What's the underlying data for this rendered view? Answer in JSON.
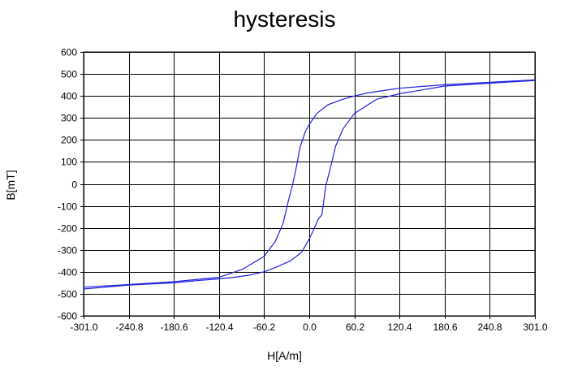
{
  "chart_data": {
    "type": "line",
    "title": "hysteresis",
    "xlabel": "H[A/m]",
    "ylabel": "B[mT]",
    "xlim": [
      -301.0,
      301.0
    ],
    "ylim": [
      -600,
      600
    ],
    "x_ticks": [
      "-301.0",
      "-240.8",
      "-180.6",
      "-120.4",
      "-60.2",
      "0.0",
      "60.2",
      "120.4",
      "180.6",
      "240.8",
      "301.0"
    ],
    "y_ticks": [
      "600",
      "500",
      "400",
      "300",
      "200",
      "100",
      "0",
      "-100",
      "-200",
      "-300",
      "-400",
      "-500",
      "-600"
    ],
    "grid": true,
    "line_color": "#2020e0",
    "series": [
      {
        "x": [
          -301,
          -240.8,
          -180.6,
          -120.4,
          -90,
          -60.2,
          -45,
          -35,
          -28,
          -22,
          -17,
          -12,
          -5,
          0,
          10,
          25,
          45,
          60.2,
          80,
          100,
          120.4,
          150,
          180.6,
          240.8,
          301
        ],
        "values": [
          -470,
          -458,
          -445,
          -425,
          -390,
          -330,
          -260,
          -180,
          -80,
          0,
          80,
          170,
          240,
          270,
          320,
          360,
          385,
          400,
          415,
          425,
          435,
          443,
          451,
          462,
          473
        ]
      },
      {
        "x": [
          301,
          240.8,
          180.6,
          120.4,
          90,
          60.2,
          45,
          35,
          28,
          22,
          17,
          12,
          5,
          0,
          -10,
          -25,
          -45,
          -60.2,
          -80,
          -100,
          -120.4,
          -150,
          -180.6,
          -240.8,
          -301
        ],
        "values": [
          470,
          458,
          445,
          410,
          385,
          320,
          250,
          170,
          70,
          -10,
          -140,
          -160,
          -215,
          -250,
          -310,
          -350,
          -380,
          -400,
          -415,
          -425,
          -432,
          -440,
          -450,
          -460,
          -478
        ]
      }
    ]
  }
}
